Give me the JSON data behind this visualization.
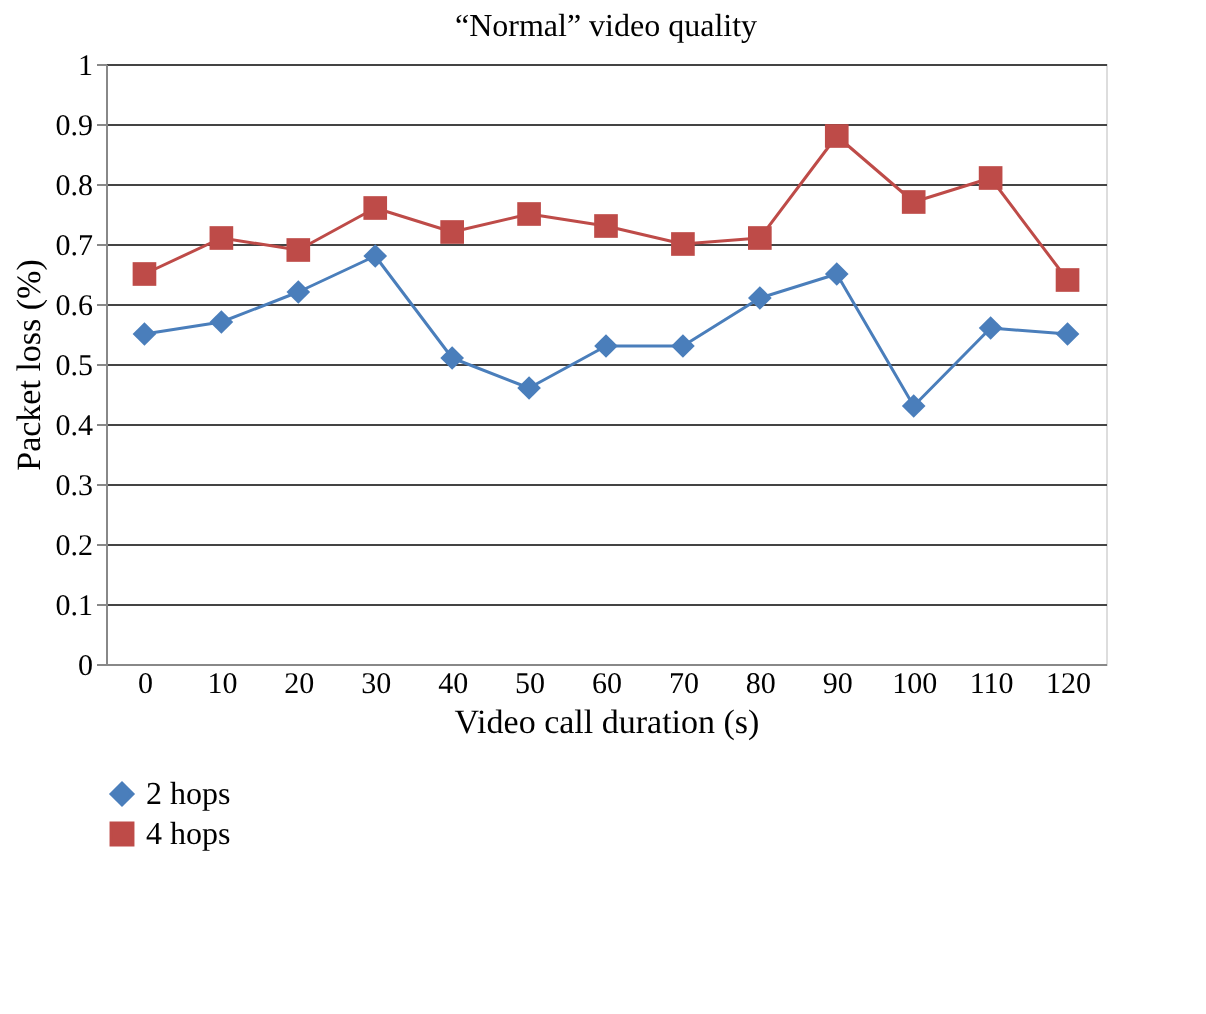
{
  "chart_data": {
    "type": "line",
    "title": "“Normal” video quality",
    "xlabel": "Video call duration (s)",
    "ylabel": "Packet loss (%)",
    "categories": [
      "0",
      "10",
      "20",
      "30",
      "40",
      "50",
      "60",
      "70",
      "80",
      "90",
      "100",
      "110",
      "120"
    ],
    "series": [
      {
        "name": "2 hops",
        "color": "#4a7ebb",
        "marker": "diamond",
        "values": [
          0.55,
          0.57,
          0.62,
          0.68,
          0.51,
          0.46,
          0.53,
          0.53,
          0.61,
          0.65,
          0.43,
          0.56,
          0.55
        ]
      },
      {
        "name": "4 hops",
        "color": "#be4b48",
        "marker": "square",
        "values": [
          0.65,
          0.71,
          0.69,
          0.76,
          0.72,
          0.75,
          0.73,
          0.7,
          0.71,
          0.88,
          0.77,
          0.81,
          0.64
        ]
      }
    ],
    "ylim": [
      0,
      1
    ],
    "yticks": [
      0,
      0.1,
      0.2,
      0.3,
      0.4,
      0.5,
      0.6,
      0.7,
      0.8,
      0.9,
      1
    ],
    "grid": "y",
    "legend": "bottom left",
    "line_style": "solid"
  }
}
